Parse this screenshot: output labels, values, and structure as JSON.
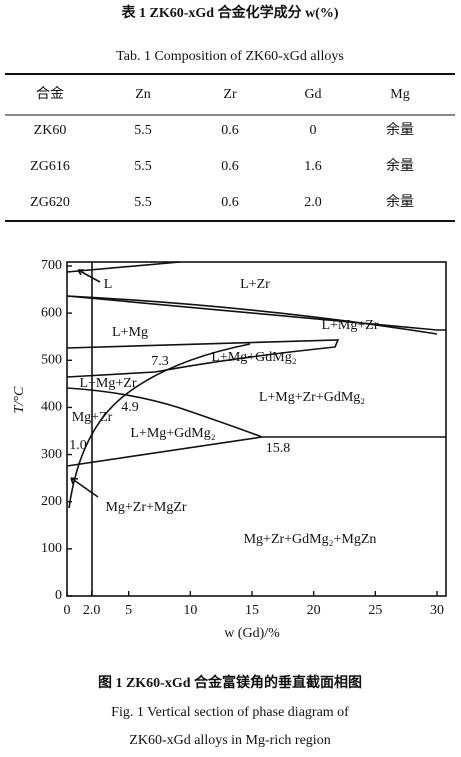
{
  "table": {
    "title_cn": "表 1  ZK60-xGd 合金化学成分 w(%)",
    "title_en": "Tab. 1   Composition of ZK60-xGd alloys",
    "headers": [
      "合金",
      "Zn",
      "Zr",
      "Gd",
      "Mg"
    ],
    "rows": [
      [
        "ZK60",
        "5.5",
        "0.6",
        "0",
        "余量"
      ],
      [
        "ZG616",
        "5.5",
        "0.6",
        "1.6",
        "余量"
      ],
      [
        "ZG620",
        "5.5",
        "0.6",
        "2.0",
        "余量"
      ]
    ]
  },
  "figure": {
    "y_label": "T/°C",
    "x_label": "w (Gd)/%",
    "xlim": [
      0,
      30
    ],
    "ylim": [
      0,
      700
    ],
    "xticks": [
      0,
      {
        "value": 2,
        "label": "2.0"
      },
      5,
      10,
      15,
      20,
      25,
      30
    ],
    "yticks": [
      0,
      100,
      200,
      300,
      400,
      500,
      600,
      700
    ],
    "regions": [
      "L",
      "L+Zr",
      "L+Mg",
      "L+Mg+Zr",
      "7.3",
      "L+Mg+GdMg₂",
      "L+Mg+Zr",
      "4.9",
      "L+Mg+Zr+GdMg₂",
      "Mg+Zr",
      "1.0",
      "L+Mg+GdMg₂",
      "15.8",
      "Mg+Zr+MgZr",
      "Mg+Zr+GdMg₂+MgZn"
    ],
    "caption_cn": "图 1  ZK60-xGd 合金富镁角的垂直截面相图",
    "caption_en_1": "Fig. 1   Vertical section of phase diagram of",
    "caption_en_2": "ZK60-xGd alloys in Mg-rich region"
  }
}
